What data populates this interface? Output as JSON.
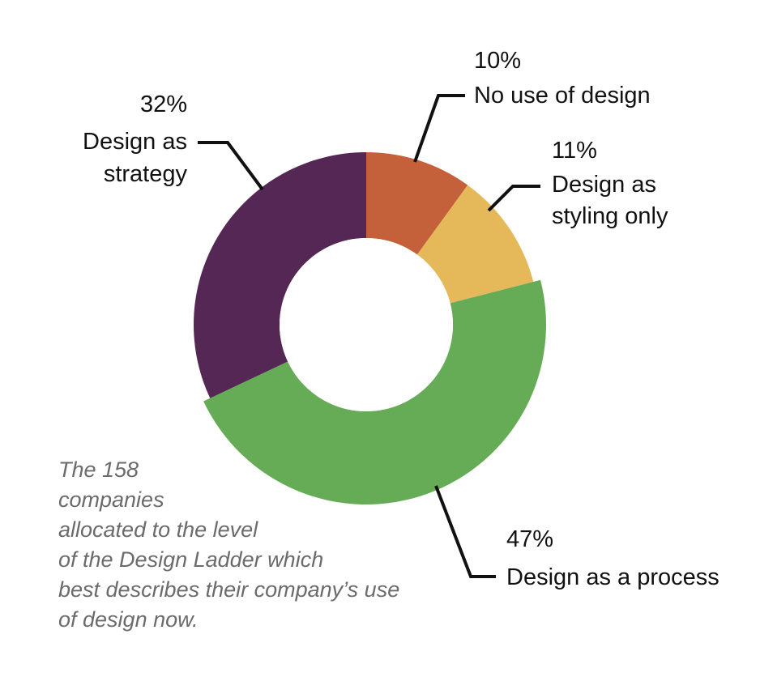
{
  "chart_data": {
    "type": "pie",
    "variant": "donut",
    "title": "",
    "slices": [
      {
        "label_lines": [
          "No use of design"
        ],
        "value": 10,
        "pct_label": "10%",
        "color": "#C4603A"
      },
      {
        "label_lines": [
          "Design as",
          "styling only"
        ],
        "value": 11,
        "pct_label": "11%",
        "color": "#E5B85A"
      },
      {
        "label_lines": [
          "Design as a process"
        ],
        "value": 47,
        "pct_label": "47%",
        "color": "#66AC56"
      },
      {
        "label_lines": [
          "Design as",
          "strategy"
        ],
        "value": 32,
        "pct_label": "32%",
        "color": "#552754"
      }
    ],
    "start_angle_deg": 0,
    "direction": "clockwise",
    "legend": "none"
  },
  "caption_lines": [
    "The 158",
    "companies",
    "allocated to the level",
    "of the Design Ladder which",
    "best describes their company’s use",
    "of design now."
  ],
  "colors": {
    "leader": "#111111",
    "caption": "#6b6b6b",
    "hole": "#ffffff"
  }
}
